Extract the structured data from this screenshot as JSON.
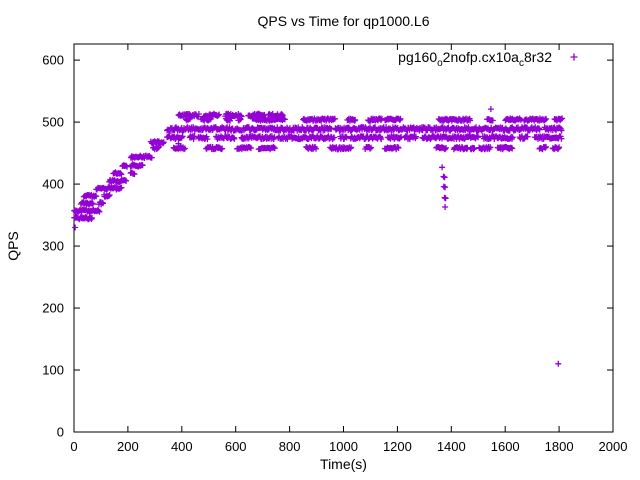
{
  "title": "QPS vs Time for qp1000.L6",
  "legend": {
    "label_raw": "pg160_o2nofp.cx10a_c8r32",
    "segments": [
      {
        "text": "pg160"
      },
      {
        "text": "o",
        "sub": true
      },
      {
        "text": "2nofp.cx10a"
      },
      {
        "text": "c",
        "sub": true
      },
      {
        "text": "8r32"
      }
    ],
    "marker": "plus"
  },
  "colors": {
    "marker": "#9400D3",
    "axis": "#000000",
    "background": "#ffffff"
  },
  "chart_data": {
    "type": "scatter",
    "title": "QPS vs Time for qp1000.L6",
    "xlabel": "Time(s)",
    "ylabel": "QPS",
    "xlim": [
      0,
      2000
    ],
    "ylim": [
      0,
      626
    ],
    "x_ticks": [
      0,
      200,
      400,
      600,
      800,
      1000,
      1200,
      1400,
      1600,
      1800,
      2000
    ],
    "y_ticks": [
      0,
      100,
      200,
      300,
      400,
      500,
      600
    ],
    "grid": false,
    "tick_style": "inward-mirrored",
    "legend_position": "top-right-inside",
    "marker": "plus",
    "series_name": "pg160_o2nofp.cx10a_c8r32",
    "seed": 20240642,
    "band_step_s": 3,
    "bands": [
      {
        "q": 345,
        "t0": 0,
        "t1": 68,
        "density": 0.9,
        "jitter": 2.0
      },
      {
        "q": 357,
        "t0": 0,
        "t1": 96,
        "density": 0.9,
        "jitter": 2.0
      },
      {
        "q": 369,
        "t0": 0,
        "t1": 108,
        "density": 0.85,
        "jitter": 2.0
      },
      {
        "q": 381,
        "t0": 36,
        "t1": 145,
        "density": 0.85,
        "jitter": 2.0
      },
      {
        "q": 393,
        "t0": 82,
        "t1": 178,
        "density": 0.8,
        "jitter": 2.0
      },
      {
        "q": 405,
        "t0": 110,
        "t1": 195,
        "density": 0.8,
        "jitter": 2.0
      },
      {
        "q": 417,
        "t0": 145,
        "t1": 226,
        "density": 0.8,
        "jitter": 2.0
      },
      {
        "q": 430,
        "t0": 178,
        "t1": 256,
        "density": 0.8,
        "jitter": 2.0
      },
      {
        "q": 444,
        "t0": 210,
        "t1": 290,
        "density": 0.8,
        "jitter": 2.0
      },
      {
        "q": 467,
        "t0": 285,
        "t1": 390,
        "density": 0.7,
        "jitter": 2.5
      },
      {
        "q": 458,
        "t0": 235,
        "t1": 1810,
        "density": 0.3,
        "jitter": 2.0
      },
      {
        "q": 511,
        "t0": 388,
        "t1": 775,
        "density": 0.7,
        "jitter": 2.5
      },
      {
        "q": 504,
        "t0": 388,
        "t1": 1810,
        "density": 0.5,
        "jitter": 2.0
      },
      {
        "q": 489,
        "t0": 345,
        "t1": 1810,
        "density": 0.93,
        "jitter": 3.0
      },
      {
        "q": 475,
        "t0": 345,
        "t1": 1810,
        "density": 0.78,
        "jitter": 2.5
      }
    ],
    "dip_points": [
      [
        1366,
        427
      ],
      [
        1371,
        412
      ],
      [
        1375,
        411
      ],
      [
        1372,
        396
      ],
      [
        1377,
        395
      ],
      [
        1375,
        378
      ],
      [
        1379,
        377
      ],
      [
        1377,
        363
      ]
    ],
    "outlier_points": [
      [
        4,
        330
      ],
      [
        1547,
        521
      ],
      [
        1797,
        110
      ]
    ]
  }
}
